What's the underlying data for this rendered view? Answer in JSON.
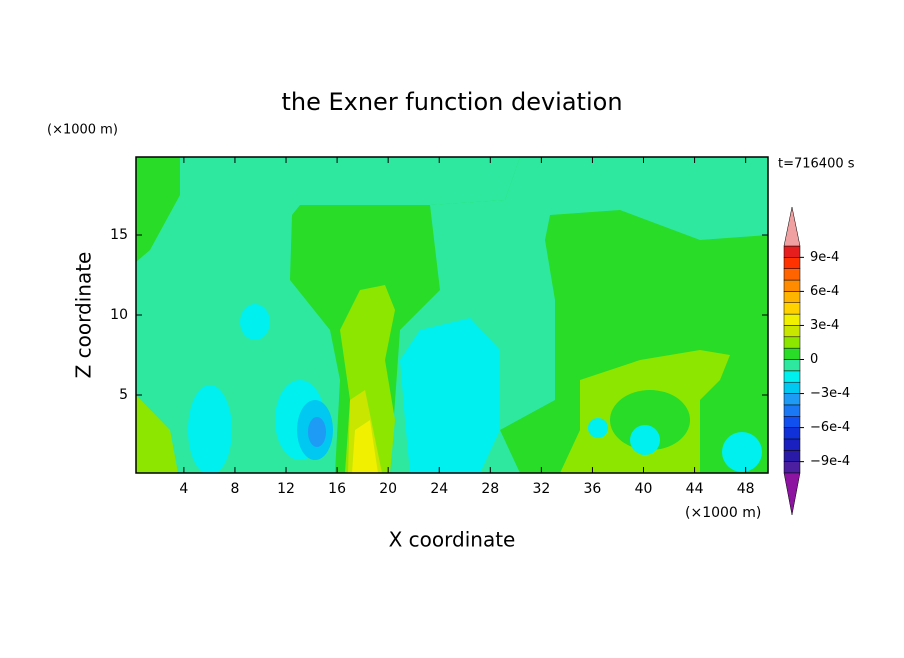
{
  "chart_data": {
    "type": "contour",
    "title": "the Exner function deviation",
    "xlabel": "X coordinate",
    "ylabel": "Z coordinate",
    "x_unit": "(×1000 m)",
    "y_unit": "(×1000 m)",
    "annotation": "t=716400 s",
    "xlim": [
      0.25,
      49.75
    ],
    "ylim": [
      0.125,
      19.875
    ],
    "xticks": [
      4,
      8,
      12,
      16,
      20,
      24,
      28,
      32,
      36,
      40,
      44,
      48
    ],
    "yticks": [
      5,
      10,
      15
    ],
    "colorbar": {
      "levels": [
        -0.001,
        -0.0009,
        -0.0008,
        -0.0007,
        -0.0006,
        -0.0005,
        -0.0004,
        -0.0003,
        -0.0002,
        -0.0001,
        0,
        0.0001,
        0.0002,
        0.0003,
        0.0004,
        0.0005,
        0.0006,
        0.0007,
        0.0008,
        0.0009,
        0.001
      ],
      "colors": [
        "#4b1fa0",
        "#2a1aa8",
        "#1a20c0",
        "#1030d8",
        "#1050f0",
        "#1a78f5",
        "#1e9bf5",
        "#00c8f0",
        "#00f0f0",
        "#2ee8a0",
        "#28dc28",
        "#8ce600",
        "#c8e600",
        "#f0f000",
        "#ffd200",
        "#ffb400",
        "#ff8c00",
        "#ff6400",
        "#ff3200",
        "#e61e1e"
      ],
      "under_color": "#8c14a0",
      "over_color": "#f0a0a0",
      "ticks": [
        {
          "value": 0.0009,
          "label": "9e-4"
        },
        {
          "value": 0.0006,
          "label": "6e-4"
        },
        {
          "value": 0.0003,
          "label": "3e-4"
        },
        0,
        {
          "value": -0.0003,
          "label": "−3e-4"
        },
        {
          "value": -0.0006,
          "label": "−6e-4"
        },
        {
          "value": -0.0009,
          "label": "−9e-4"
        }
      ]
    }
  }
}
